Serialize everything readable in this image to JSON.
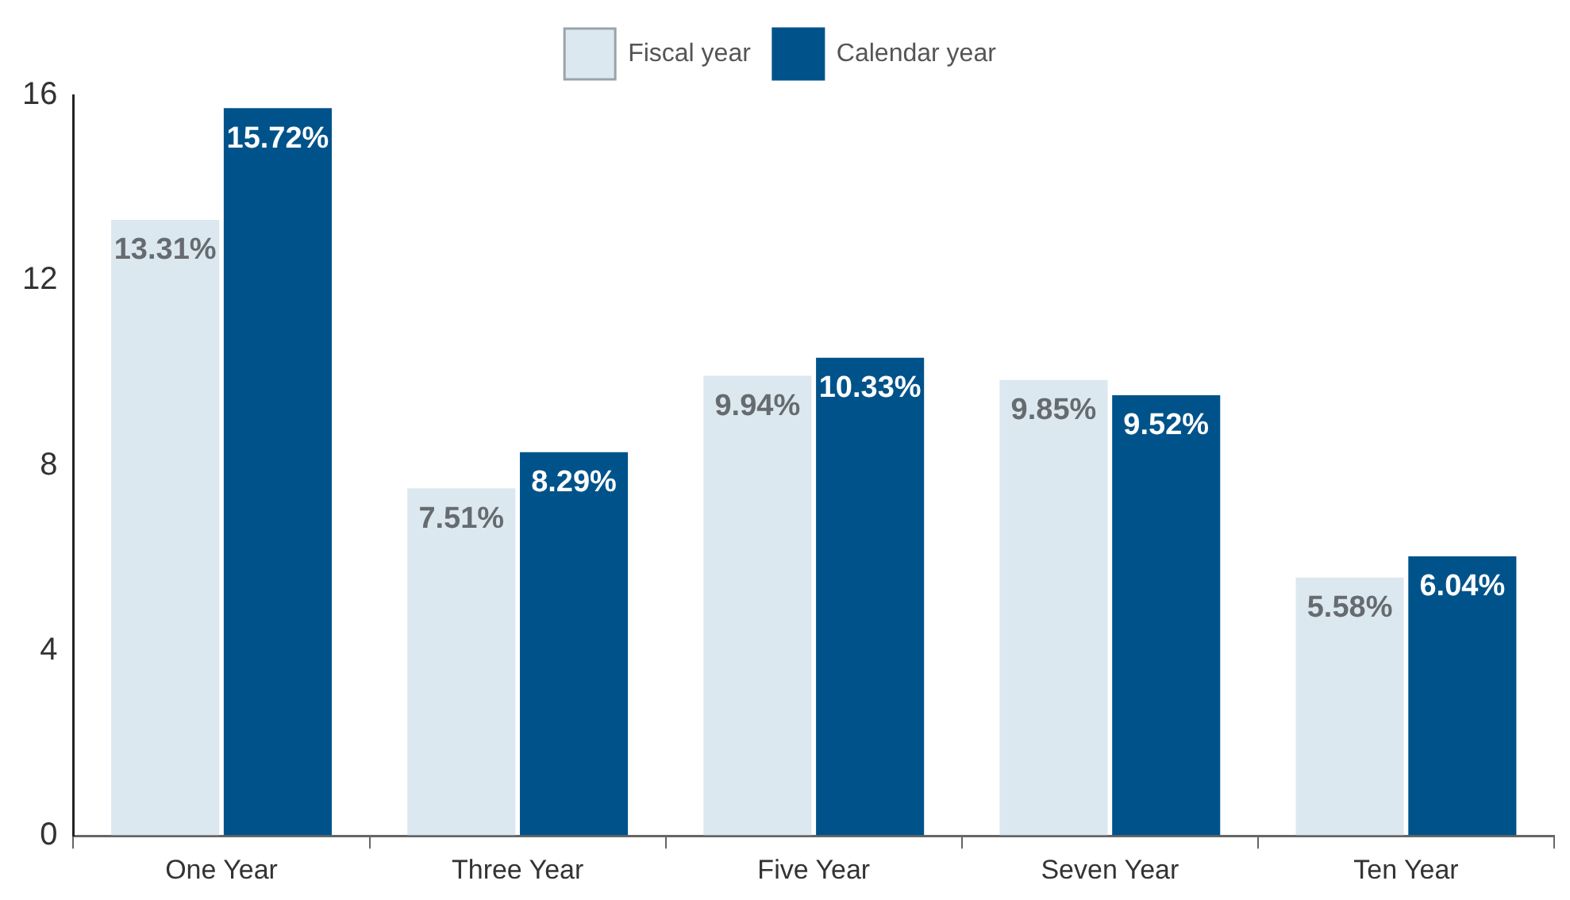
{
  "chart_data": {
    "type": "bar",
    "categories": [
      "One Year",
      "Three Year",
      "Five Year",
      "Seven Year",
      "Ten Year"
    ],
    "series": [
      {
        "name": "Fiscal year",
        "color": "#dce8f0",
        "values": [
          13.31,
          7.51,
          9.94,
          9.85,
          5.58
        ],
        "value_labels": [
          "13.31%",
          "7.51%",
          "9.94%",
          "9.85%",
          "5.58%"
        ]
      },
      {
        "name": "Calendar year",
        "color": "#00538a",
        "values": [
          15.72,
          8.29,
          10.33,
          9.52,
          6.04
        ],
        "value_labels": [
          "15.72%",
          "8.29%",
          "10.33%",
          "9.52%",
          "6.04%"
        ]
      }
    ],
    "ylim": [
      0,
      16
    ],
    "yticks": [
      0,
      4,
      8,
      12,
      16
    ],
    "grid": false,
    "legend": "top"
  }
}
